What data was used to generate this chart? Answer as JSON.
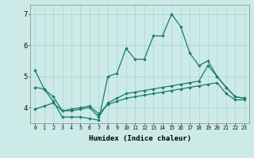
{
  "xlabel": "Humidex (Indice chaleur)",
  "bg_color": "#cceae7",
  "grid_color": "#aad5d0",
  "line_color": "#1a7a6e",
  "x_values": [
    0,
    1,
    2,
    3,
    4,
    5,
    6,
    7,
    8,
    9,
    10,
    11,
    12,
    13,
    14,
    15,
    16,
    17,
    18,
    19,
    20,
    21,
    22,
    23
  ],
  "main_line": [
    5.2,
    4.6,
    4.2,
    3.7,
    3.7,
    3.7,
    3.65,
    3.6,
    5.0,
    5.1,
    5.9,
    5.55,
    5.55,
    6.3,
    6.3,
    7.0,
    6.6,
    5.75,
    5.35,
    5.5,
    5.0,
    4.65,
    4.35,
    4.3
  ],
  "line2": [
    4.65,
    4.6,
    4.35,
    3.9,
    3.9,
    3.95,
    4.0,
    3.7,
    4.15,
    4.3,
    4.45,
    4.5,
    4.55,
    4.6,
    4.65,
    4.7,
    4.75,
    4.8,
    4.85,
    5.35,
    5.0,
    4.65,
    4.35,
    4.3
  ],
  "line3": [
    3.95,
    4.05,
    4.15,
    3.9,
    3.95,
    4.0,
    4.05,
    3.8,
    4.1,
    4.2,
    4.3,
    4.35,
    4.4,
    4.45,
    4.5,
    4.55,
    4.6,
    4.65,
    4.7,
    4.75,
    4.8,
    4.45,
    4.25,
    4.25
  ],
  "ylim": [
    3.5,
    7.3
  ],
  "yticks": [
    4,
    5,
    6,
    7
  ],
  "xlim": [
    -0.5,
    23.5
  ],
  "xlabel_fontsize": 6.5,
  "tick_fontsize_x": 4.8,
  "tick_fontsize_y": 6.5,
  "marker_size": 2.2,
  "line_width": 0.9
}
